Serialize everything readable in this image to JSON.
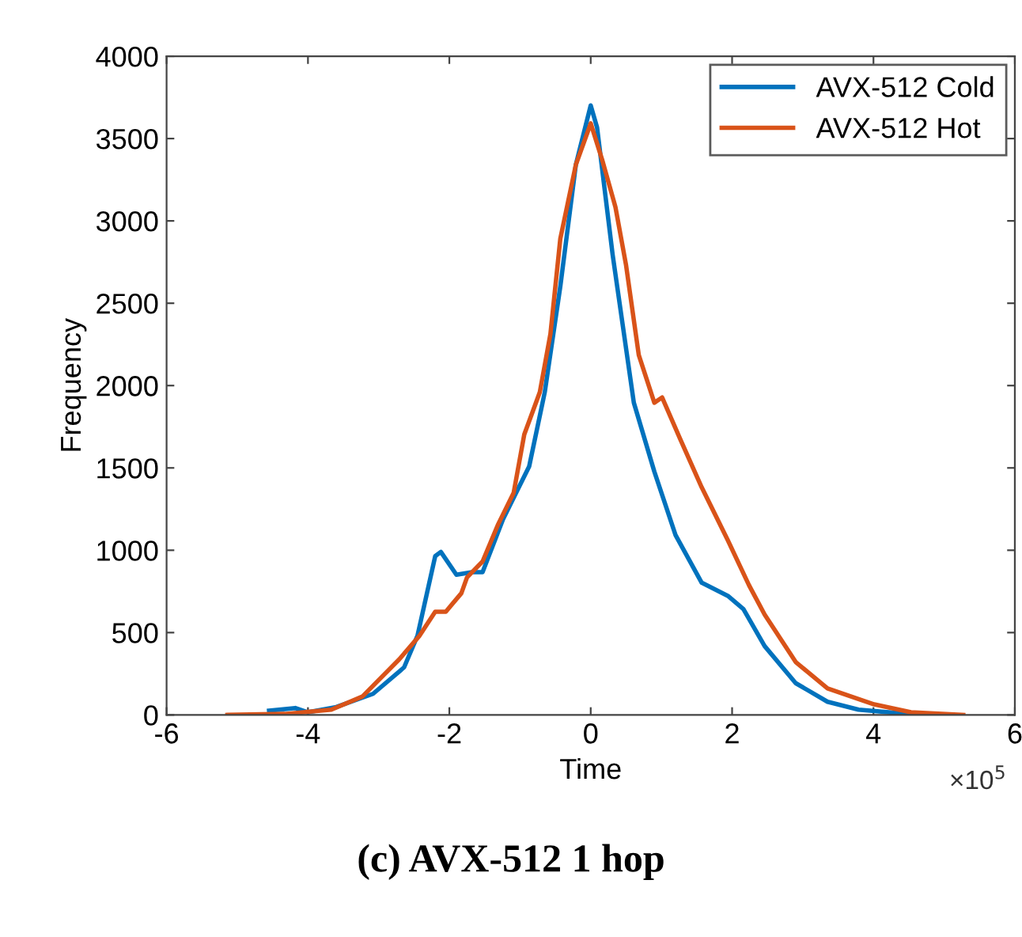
{
  "chart_data": {
    "type": "line",
    "title": "(c) AVX-512 1 hop",
    "xlabel": "Time",
    "ylabel": "Frequency",
    "annotations": [
      "×10$^{5}$"
    ],
    "xlim": [
      -6,
      6
    ],
    "xticks": [
      -6,
      -4,
      -2,
      0,
      2,
      4,
      6
    ],
    "ylim": [
      0,
      4000
    ],
    "yticks": [
      0,
      500,
      1000,
      1500,
      2000,
      2500,
      3000,
      3500,
      4000
    ],
    "grid": false,
    "legend": "top right",
    "line_style": "solid",
    "marker": "none",
    "series": [
      {
        "name": "AVX-512 Cold",
        "color": "#0072bd",
        "x": [
          -4.55,
          -4.18,
          -4.0,
          -3.6,
          -3.08,
          -2.64,
          -2.45,
          -2.2,
          -2.12,
          -1.9,
          -1.68,
          -1.53,
          -1.24,
          -0.87,
          -0.65,
          -0.43,
          -0.21,
          0,
          0.09,
          0.31,
          0.61,
          0.9,
          1.2,
          1.57,
          1.94,
          2.16,
          2.46,
          2.9,
          3.35,
          3.79,
          4.38,
          4.76
        ],
        "values": [
          26,
          42,
          16,
          48,
          128,
          289,
          482,
          964,
          990,
          851,
          867,
          867,
          1189,
          1510,
          1960,
          2603,
          3342,
          3701,
          3567,
          2795,
          1896,
          1478,
          1092,
          803,
          723,
          643,
          418,
          193,
          80,
          32,
          10,
          0
        ]
      },
      {
        "name": "AVX-512 Hot",
        "color": "#d95319",
        "x": [
          -5.14,
          -4.33,
          -3.67,
          -3.23,
          -2.71,
          -2.42,
          -2.2,
          -2.05,
          -1.83,
          -1.75,
          -1.53,
          -1.31,
          -1.09,
          -0.94,
          -0.72,
          -0.57,
          -0.43,
          -0.21,
          0,
          0.16,
          0.35,
          0.5,
          0.68,
          0.9,
          1.01,
          1.27,
          1.57,
          1.94,
          2.24,
          2.46,
          2.9,
          3.35,
          4.01,
          4.53,
          5.27
        ],
        "values": [
          0,
          6,
          32,
          112,
          337,
          482,
          627,
          627,
          739,
          835,
          932,
          1157,
          1349,
          1703,
          1960,
          2313,
          2892,
          3342,
          3592,
          3374,
          3084,
          2731,
          2185,
          1896,
          1928,
          1671,
          1382,
          1060,
          787,
          610,
          321,
          161,
          64,
          16,
          0
        ]
      }
    ]
  }
}
